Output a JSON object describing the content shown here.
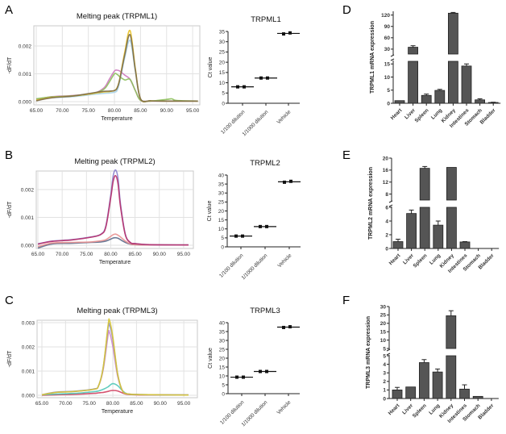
{
  "panel_labels": [
    "A",
    "B",
    "C",
    "D",
    "E",
    "F"
  ],
  "chart_data": [
    {
      "type": "line",
      "title": "Melting peak (TRPML1)",
      "xlabel": "Temperature",
      "ylabel": "-dF/dT",
      "x_ticks": [
        "65.00",
        "70.00",
        "75.00",
        "80.00",
        "85.00",
        "90.00",
        "95.00"
      ],
      "y_ticks": [
        "0.000",
        "0.001",
        "0.002"
      ],
      "grid": true,
      "x": [
        65,
        68,
        72,
        76,
        78,
        79,
        80,
        80.5,
        81,
        82,
        83,
        84,
        85,
        87,
        90,
        91,
        92,
        96
      ],
      "series": [
        {
          "name": "trace-1",
          "color": "#a8d4ea",
          "values": [
            0.0001,
            0.00014,
            0.00018,
            0.00026,
            0.0003,
            0.00031,
            0.00034,
            0.0004,
            0.0007,
            0.0016,
            0.0022,
            0.0011,
            0.0001,
            3e-05,
            2e-05,
            2e-05,
            2e-05,
            2e-05
          ]
        },
        {
          "name": "trace-2",
          "color": "#cc77bb",
          "values": [
            8e-05,
            0.00018,
            0.00022,
            0.0003,
            0.0005,
            0.0008,
            0.0011,
            0.00113,
            0.0011,
            0.00095,
            0.0008,
            0.0004,
            5e-05,
            2e-05,
            2e-05,
            2e-05,
            2e-05,
            2e-05
          ]
        },
        {
          "name": "trace-3",
          "color": "#8cbf5a",
          "values": [
            0.0001,
            0.00017,
            0.00021,
            0.0003,
            0.00045,
            0.0007,
            0.001,
            0.00098,
            0.0009,
            0.00078,
            0.0008,
            0.0004,
            5e-05,
            2e-05,
            8e-05,
            0.0001,
            4e-05,
            2e-05
          ]
        },
        {
          "name": "trace-4",
          "color": "#e8c020",
          "values": [
            5e-05,
            0.00015,
            0.0002,
            0.0003,
            0.00035,
            0.00036,
            0.0004,
            0.0005,
            0.0008,
            0.0018,
            0.00255,
            0.0012,
            0.0001,
            3e-05,
            2e-05,
            2e-05,
            2e-05,
            2e-05
          ]
        },
        {
          "name": "trace-5",
          "color": "#7a6a4a",
          "values": [
            3e-05,
            0.00014,
            0.0002,
            0.00032,
            0.00037,
            0.00038,
            0.0004,
            0.00048,
            0.00078,
            0.0017,
            0.0024,
            0.00115,
            0.0001,
            3e-05,
            2e-05,
            2e-05,
            2e-05,
            2e-05
          ]
        }
      ]
    },
    {
      "type": "scatter",
      "title": "TRPML1",
      "ylabel": "Ct value",
      "ylim": [
        0,
        35
      ],
      "y_ticks": [
        "0",
        "5",
        "10",
        "15",
        "20",
        "25",
        "30",
        "35"
      ],
      "categories": [
        "1/100 dilution",
        "1/1000 dilution",
        "Vehicle"
      ],
      "values": [
        [
          8,
          8
        ],
        [
          12.3,
          12.3
        ],
        [
          33.8,
          34.3
        ]
      ]
    },
    {
      "type": "bar",
      "ylabel": "TRPML1 mRNA expression",
      "axis_break": [
        16,
        17
      ],
      "lower_ticks": [
        "0",
        "5",
        "10",
        "15"
      ],
      "upper_ticks": [
        "30",
        "60",
        "90",
        "120"
      ],
      "categories": [
        "Heart",
        "Liver",
        "Spleen",
        "Lung",
        "Kidney",
        "Intestines",
        "Stomach",
        "Bladder"
      ],
      "values": [
        1,
        35,
        3,
        4.9,
        125,
        14.2,
        1.3,
        0.3
      ],
      "errors": [
        0,
        4,
        0.5,
        0.4,
        2,
        0.8,
        0.4,
        0.1
      ]
    },
    {
      "type": "line",
      "title": "Melting peak (TRPML2)",
      "xlabel": "Temperature",
      "ylabel": "-dF/dT",
      "x_ticks": [
        "65.00",
        "70.00",
        "75.00",
        "80.00",
        "85.00",
        "90.00",
        "95.00"
      ],
      "y_ticks": [
        "0.000",
        "0.001",
        "0.002"
      ],
      "grid": true,
      "x": [
        65,
        68,
        72,
        76,
        78,
        79,
        80,
        80.5,
        81,
        81.5,
        82,
        83,
        84,
        85,
        88,
        96
      ],
      "series": [
        {
          "name": "trace-1",
          "color": "#5a6a8a",
          "values": [
            -0.0001,
            5e-05,
            7e-05,
            0.0001,
            0.00012,
            0.00015,
            0.00022,
            0.00026,
            0.00027,
            0.00025,
            0.0002,
            0.0001,
            4e-05,
            2e-05,
            1e-05,
            1e-05
          ]
        },
        {
          "name": "trace-2",
          "color": "#e89090",
          "values": [
            -5e-05,
            8e-05,
            0.0001,
            0.00012,
            0.00016,
            0.0002,
            0.00032,
            0.00038,
            0.0004,
            0.00036,
            0.0003,
            0.00015,
            5e-05,
            2e-05,
            1e-05,
            1e-05
          ]
        },
        {
          "name": "trace-3",
          "color": "#8a80cc",
          "values": [
            5e-05,
            0.00015,
            0.0002,
            0.0003,
            0.0004,
            0.0007,
            0.0018,
            0.0025,
            0.0027,
            0.0024,
            0.0015,
            0.0004,
            0.0001,
            6e-05,
            2e-05,
            1e-05
          ]
        },
        {
          "name": "trace-4",
          "color": "#b8306a",
          "values": [
            4e-05,
            0.00014,
            0.00019,
            0.00029,
            0.00039,
            0.00066,
            0.0017,
            0.0023,
            0.0025,
            0.0022,
            0.0014,
            0.00038,
            0.0001,
            6e-05,
            2e-05,
            1e-05
          ]
        }
      ]
    },
    {
      "type": "scatter",
      "title": "TRPML2",
      "ylabel": "Ct value",
      "ylim": [
        0,
        40
      ],
      "y_ticks": [
        "0",
        "5",
        "10",
        "15",
        "20",
        "25",
        "30",
        "35",
        "40"
      ],
      "categories": [
        "1/100 dilution",
        "1/1000 dilution",
        "Vehicle"
      ],
      "values": [
        [
          6,
          6
        ],
        [
          11.3,
          11.3
        ],
        [
          36,
          36.5
        ]
      ]
    },
    {
      "type": "bar",
      "ylabel": "TRPML2 mRNA expression",
      "axis_break": [
        6,
        6.3
      ],
      "lower_ticks": [
        "0",
        "2",
        "4",
        "6"
      ],
      "upper_ticks": [
        "8",
        "12",
        "16",
        "20"
      ],
      "categories": [
        "Heart",
        "Liver",
        "Spleen",
        "Lung",
        "Kidney",
        "Intestines",
        "Stomach",
        "Bladder"
      ],
      "values": [
        1,
        5.1,
        16.6,
        3.4,
        16.9,
        0.95,
        0,
        0
      ],
      "errors": [
        0.35,
        0.5,
        0.6,
        0.6,
        0,
        0.05,
        0,
        0
      ]
    },
    {
      "type": "line",
      "title": "Melting peak (TRPML3)",
      "xlabel": "Temperature",
      "ylabel": "-dF/dT",
      "x_ticks": [
        "65.00",
        "70.00",
        "75.00",
        "80.00",
        "85.00",
        "90.00",
        "95.00"
      ],
      "y_ticks": [
        "0.000",
        "0.001",
        "0.002",
        "0.003"
      ],
      "grid": true,
      "x": [
        65,
        68,
        72,
        76,
        77,
        78,
        79,
        79.3,
        80,
        81,
        82,
        83,
        85,
        90,
        96
      ],
      "series": [
        {
          "name": "trace-1",
          "color": "#d04060",
          "values": [
            0,
            2e-05,
            4e-05,
            8e-05,
            0.0001,
            0.00012,
            0.00016,
            0.00018,
            0.0002,
            0.00018,
            0.0001,
            4e-05,
            2e-05,
            1e-05,
            1e-05
          ]
        },
        {
          "name": "trace-2",
          "color": "#50c8b8",
          "values": [
            2e-05,
            5e-05,
            8e-05,
            0.00015,
            0.00018,
            0.00025,
            0.00035,
            0.0004,
            0.00048,
            0.0004,
            0.0002,
            6e-05,
            3e-05,
            2e-05,
            1e-05
          ]
        },
        {
          "name": "trace-3",
          "color": "#cc88cc",
          "values": [
            2e-05,
            0.00012,
            0.00016,
            0.00025,
            0.0004,
            0.0011,
            0.0025,
            0.0026,
            0.002,
            0.0008,
            0.0002,
            6e-05,
            3e-05,
            2e-05,
            1e-05
          ]
        },
        {
          "name": "trace-4",
          "color": "#8888cc",
          "values": [
            2e-05,
            0.00013,
            0.00017,
            0.00026,
            0.0004,
            0.0012,
            0.0028,
            0.0029,
            0.0023,
            0.0009,
            0.0002,
            6e-05,
            3e-05,
            2e-05,
            1e-05
          ]
        },
        {
          "name": "trace-5",
          "color": "#d8c830",
          "values": [
            2e-05,
            0.00012,
            0.00016,
            0.00025,
            0.0004,
            0.0012,
            0.0029,
            0.0031,
            0.0024,
            0.0009,
            0.0002,
            6e-05,
            3e-05,
            2e-05,
            1e-05
          ]
        }
      ]
    },
    {
      "type": "scatter",
      "title": "TRPML3",
      "ylabel": "Ct value",
      "ylim": [
        0,
        40
      ],
      "y_ticks": [
        "0",
        "5",
        "10",
        "15",
        "20",
        "25",
        "30",
        "35",
        "40"
      ],
      "categories": [
        "1/100 dilution",
        "1/1000 dilution",
        "Vehicle"
      ],
      "values": [
        [
          9.3,
          9.3
        ],
        [
          12.5,
          12.5
        ],
        [
          37.3,
          37.7
        ]
      ]
    },
    {
      "type": "bar",
      "ylabel": "TRPML3 mRNA expression",
      "axis_break": [
        5,
        5
      ],
      "lower_ticks": [
        "0",
        "1",
        "2",
        "3",
        "4",
        "5"
      ],
      "upper_ticks": [
        "5",
        "10",
        "15",
        "20",
        "25",
        "30"
      ],
      "categories": [
        "Heart",
        "Liver",
        "Spleen",
        "Lung",
        "Kidney",
        "Intestines",
        "Stomach",
        "Bladder"
      ],
      "values": [
        1,
        1.35,
        4.2,
        3.1,
        24.5,
        1.1,
        0.25,
        0
      ],
      "errors": [
        0.3,
        0,
        0.35,
        0.35,
        3,
        0.5,
        0,
        0
      ]
    }
  ]
}
